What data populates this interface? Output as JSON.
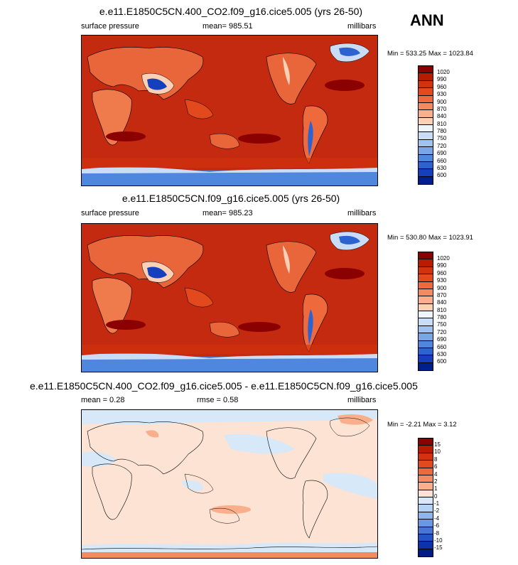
{
  "season": "ANN",
  "panels": [
    {
      "title": "e.e11.E1850C5CN.400_CO2.f09_g16.cice5.005 (yrs 26-50)",
      "left_label": "surface pressure",
      "center_label": "mean= 985.51",
      "right_label": "millibars",
      "minmax": "Min = 533.25 Max = 1023.84",
      "legend_labels": [
        "1020",
        "990",
        "960",
        "930",
        "900",
        "870",
        "840",
        "810",
        "780",
        "750",
        "720",
        "690",
        "660",
        "630",
        "600"
      ],
      "legend_colors": [
        "#8b0000",
        "#b81c00",
        "#d3320e",
        "#e24a1d",
        "#ee6a3c",
        "#f48a5f",
        "#f9ae8c",
        "#fcd0b5",
        "#eef4fb",
        "#c9ddf6",
        "#9fc3f0",
        "#78a6e8",
        "#4f86de",
        "#2d63d0",
        "#143fbd",
        "#001f8e"
      ]
    },
    {
      "title": "e.e11.E1850C5CN.f09_g16.cice5.005 (yrs 26-50)",
      "left_label": "surface pressure",
      "center_label": "mean= 985.23",
      "right_label": "millibars",
      "minmax": "Min = 530.80 Max = 1023.91",
      "legend_labels": [
        "1020",
        "990",
        "960",
        "930",
        "900",
        "870",
        "840",
        "810",
        "780",
        "750",
        "720",
        "690",
        "660",
        "630",
        "600"
      ],
      "legend_colors": [
        "#8b0000",
        "#b81c00",
        "#d3320e",
        "#e24a1d",
        "#ee6a3c",
        "#f48a5f",
        "#f9ae8c",
        "#fcd0b5",
        "#eef4fb",
        "#c9ddf6",
        "#9fc3f0",
        "#78a6e8",
        "#4f86de",
        "#2d63d0",
        "#143fbd",
        "#001f8e"
      ]
    },
    {
      "title": "e.e11.E1850C5CN.400_CO2.f09_g16.cice5.005 - e.e11.E1850C5CN.f09_g16.cice5.005",
      "left_label": "mean =  0.28",
      "center_label": "rmse =   0.58",
      "right_label": "millibars",
      "minmax": "Min =  -2.21 Max =  3.12",
      "legend_labels": [
        "15",
        "10",
        "8",
        "6",
        "4",
        "2",
        "1",
        "0",
        "-1",
        "-2",
        "-4",
        "-6",
        "-8",
        "-10",
        "-15"
      ],
      "legend_colors": [
        "#8b0000",
        "#b81c00",
        "#d3320e",
        "#e24a1d",
        "#ee6a3c",
        "#f48a5f",
        "#f9ae8c",
        "#fde3d3",
        "#d7e8f8",
        "#b5d1f3",
        "#8fb6ec",
        "#6a97e3",
        "#4576d8",
        "#2453c8",
        "#0e32ae",
        "#001a8a"
      ]
    }
  ]
}
